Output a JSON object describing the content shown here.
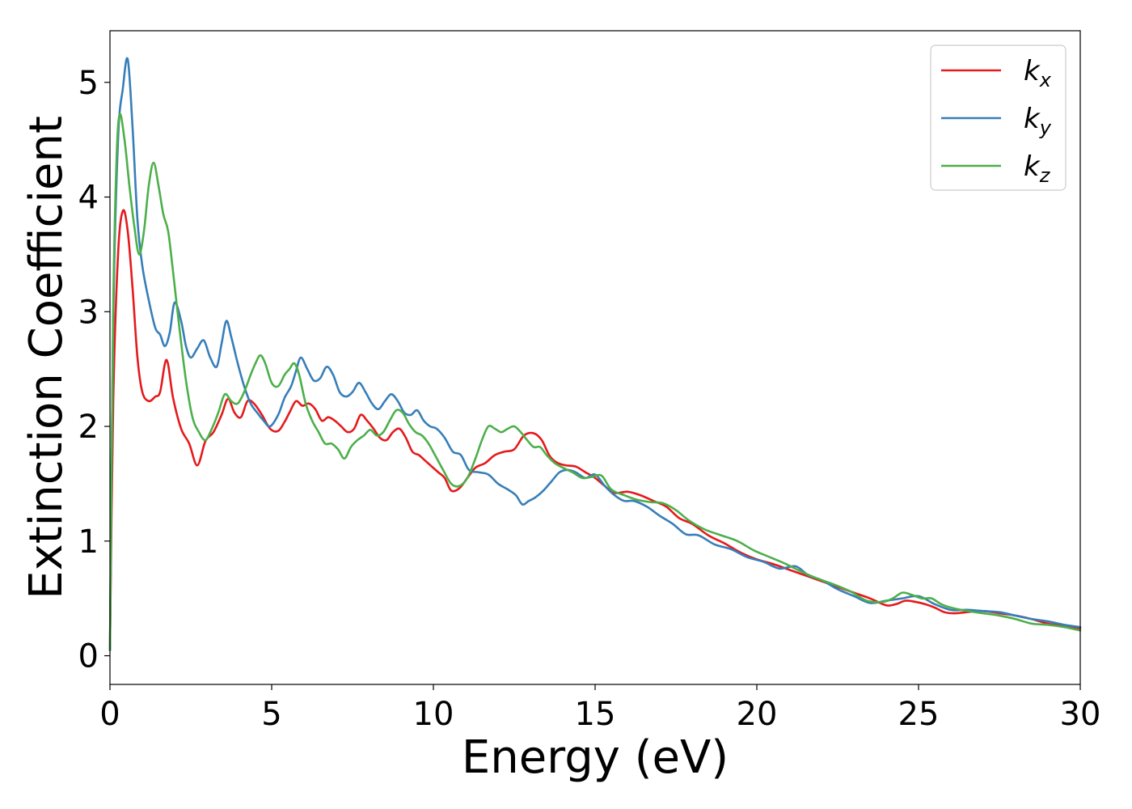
{
  "chart_data": {
    "type": "line",
    "xlabel": "Energy (eV)",
    "ylabel": "Extinction Coefficient",
    "xlim": [
      0,
      30
    ],
    "ylim": [
      -0.25,
      5.45
    ],
    "xticks": [
      0,
      5,
      10,
      15,
      20,
      25,
      30
    ],
    "yticks": [
      0,
      1,
      2,
      3,
      4,
      5
    ],
    "grid": false,
    "legend_position": "top-right",
    "series": [
      {
        "name": "kx",
        "label_main": "k",
        "label_sub": "x",
        "color": "#e41a1c",
        "x": [
          0,
          0.1,
          0.25,
          0.4,
          0.55,
          0.7,
          0.85,
          1.0,
          1.2,
          1.4,
          1.55,
          1.75,
          1.95,
          2.2,
          2.45,
          2.7,
          2.95,
          3.2,
          3.45,
          3.65,
          3.85,
          4.05,
          4.25,
          4.45,
          4.7,
          4.95,
          5.2,
          5.4,
          5.55,
          5.75,
          5.95,
          6.15,
          6.35,
          6.55,
          6.75,
          6.95,
          7.15,
          7.35,
          7.55,
          7.75,
          7.95,
          8.15,
          8.35,
          8.55,
          8.75,
          8.95,
          9.15,
          9.35,
          9.55,
          9.75,
          9.95,
          10.15,
          10.35,
          10.55,
          10.8,
          11.05,
          11.3,
          11.6,
          11.9,
          12.2,
          12.5,
          12.8,
          13.1,
          13.35,
          13.6,
          13.85,
          14.1,
          14.4,
          14.7,
          15.0,
          15.3,
          15.6,
          16.0,
          16.4,
          16.8,
          17.2,
          17.6,
          18.0,
          18.5,
          19.0,
          19.5,
          20.0,
          20.5,
          21.0,
          21.5,
          22.0,
          22.5,
          23.0,
          23.5,
          24.0,
          24.3,
          24.6,
          24.9,
          25.2,
          25.5,
          25.8,
          26.1,
          26.5,
          27.0,
          27.5,
          28.0,
          28.5,
          29.0,
          29.5,
          30.0
        ],
        "y": [
          0.05,
          2.2,
          3.5,
          3.88,
          3.7,
          3.2,
          2.6,
          2.3,
          2.22,
          2.26,
          2.3,
          2.58,
          2.25,
          1.98,
          1.85,
          1.66,
          1.87,
          1.95,
          2.1,
          2.24,
          2.12,
          2.08,
          2.22,
          2.2,
          2.1,
          1.98,
          1.96,
          2.04,
          2.12,
          2.22,
          2.18,
          2.2,
          2.15,
          2.05,
          2.08,
          2.05,
          2.0,
          1.95,
          1.98,
          2.1,
          2.05,
          1.98,
          1.9,
          1.88,
          1.95,
          1.98,
          1.9,
          1.78,
          1.75,
          1.7,
          1.65,
          1.6,
          1.55,
          1.44,
          1.46,
          1.55,
          1.64,
          1.68,
          1.75,
          1.78,
          1.8,
          1.92,
          1.94,
          1.88,
          1.74,
          1.68,
          1.66,
          1.65,
          1.6,
          1.55,
          1.48,
          1.42,
          1.43,
          1.4,
          1.35,
          1.3,
          1.2,
          1.15,
          1.05,
          0.98,
          0.9,
          0.84,
          0.8,
          0.75,
          0.7,
          0.65,
          0.6,
          0.55,
          0.5,
          0.44,
          0.45,
          0.48,
          0.47,
          0.45,
          0.42,
          0.38,
          0.37,
          0.38,
          0.39,
          0.37,
          0.35,
          0.32,
          0.28,
          0.26,
          0.24
        ]
      },
      {
        "name": "ky",
        "label_main": "k",
        "label_sub": "y",
        "color": "#377eb8",
        "x": [
          0,
          0.1,
          0.25,
          0.4,
          0.55,
          0.7,
          0.85,
          1.0,
          1.2,
          1.4,
          1.55,
          1.7,
          1.85,
          2.0,
          2.2,
          2.35,
          2.5,
          2.7,
          2.9,
          3.1,
          3.3,
          3.45,
          3.6,
          3.75,
          3.95,
          4.15,
          4.35,
          4.55,
          4.75,
          4.95,
          5.2,
          5.4,
          5.6,
          5.75,
          5.9,
          6.1,
          6.3,
          6.5,
          6.7,
          6.9,
          7.1,
          7.3,
          7.5,
          7.7,
          7.9,
          8.1,
          8.3,
          8.5,
          8.7,
          8.9,
          9.1,
          9.3,
          9.5,
          9.7,
          9.9,
          10.1,
          10.35,
          10.6,
          10.85,
          11.1,
          11.4,
          11.7,
          12.0,
          12.3,
          12.55,
          12.75,
          12.95,
          13.15,
          13.4,
          13.65,
          13.9,
          14.15,
          14.4,
          14.7,
          15.0,
          15.3,
          15.6,
          15.9,
          16.2,
          16.6,
          17.0,
          17.4,
          17.8,
          18.2,
          18.7,
          19.2,
          19.7,
          20.2,
          20.7,
          21.2,
          21.6,
          22.0,
          22.5,
          23.0,
          23.5,
          24.0,
          24.5,
          25.0,
          25.5,
          26.0,
          26.5,
          27.0,
          27.5,
          28.0,
          28.5,
          29.0,
          29.5,
          30.0
        ],
        "y": [
          0.05,
          2.9,
          4.5,
          4.95,
          5.2,
          4.6,
          3.8,
          3.4,
          3.1,
          2.86,
          2.8,
          2.7,
          2.82,
          3.08,
          2.92,
          2.7,
          2.6,
          2.68,
          2.75,
          2.6,
          2.52,
          2.72,
          2.92,
          2.78,
          2.55,
          2.35,
          2.2,
          2.12,
          2.05,
          2.0,
          2.1,
          2.25,
          2.35,
          2.48,
          2.6,
          2.5,
          2.4,
          2.42,
          2.52,
          2.45,
          2.3,
          2.26,
          2.3,
          2.38,
          2.3,
          2.2,
          2.15,
          2.22,
          2.28,
          2.22,
          2.12,
          2.1,
          2.14,
          2.05,
          2.0,
          1.98,
          1.9,
          1.78,
          1.75,
          1.62,
          1.6,
          1.58,
          1.5,
          1.45,
          1.4,
          1.32,
          1.35,
          1.38,
          1.44,
          1.52,
          1.6,
          1.62,
          1.6,
          1.55,
          1.58,
          1.48,
          1.4,
          1.35,
          1.35,
          1.3,
          1.22,
          1.15,
          1.06,
          1.05,
          0.97,
          0.93,
          0.86,
          0.82,
          0.76,
          0.78,
          0.7,
          0.66,
          0.58,
          0.52,
          0.46,
          0.48,
          0.5,
          0.52,
          0.45,
          0.4,
          0.4,
          0.39,
          0.38,
          0.35,
          0.32,
          0.3,
          0.27,
          0.25
        ]
      },
      {
        "name": "kz",
        "label_main": "k",
        "label_sub": "z",
        "color": "#4daf4a",
        "x": [
          0,
          0.1,
          0.2,
          0.3,
          0.45,
          0.6,
          0.75,
          0.9,
          1.05,
          1.2,
          1.35,
          1.5,
          1.65,
          1.8,
          1.95,
          2.15,
          2.35,
          2.55,
          2.75,
          2.95,
          3.15,
          3.35,
          3.55,
          3.75,
          3.95,
          4.15,
          4.35,
          4.5,
          4.65,
          4.8,
          5.0,
          5.2,
          5.4,
          5.55,
          5.7,
          5.85,
          6.05,
          6.25,
          6.45,
          6.65,
          6.85,
          7.05,
          7.25,
          7.45,
          7.65,
          7.85,
          8.05,
          8.25,
          8.45,
          8.65,
          8.85,
          9.05,
          9.25,
          9.45,
          9.65,
          9.85,
          10.05,
          10.3,
          10.55,
          10.8,
          11.05,
          11.3,
          11.5,
          11.7,
          11.9,
          12.1,
          12.3,
          12.5,
          12.7,
          12.9,
          13.1,
          13.3,
          13.5,
          13.75,
          14.0,
          14.3,
          14.6,
          14.9,
          15.2,
          15.5,
          15.9,
          16.3,
          16.7,
          17.1,
          17.5,
          17.9,
          18.4,
          18.9,
          19.4,
          19.9,
          20.4,
          20.9,
          21.4,
          21.9,
          22.4,
          22.9,
          23.4,
          23.9,
          24.2,
          24.5,
          24.8,
          25.1,
          25.4,
          25.7,
          26.0,
          26.5,
          27.0,
          27.5,
          28.0,
          28.5,
          29.0,
          29.5,
          30.0
        ],
        "y": [
          0.05,
          3.0,
          4.3,
          4.72,
          4.5,
          4.1,
          3.75,
          3.5,
          3.7,
          4.1,
          4.3,
          4.1,
          3.85,
          3.7,
          3.35,
          2.85,
          2.4,
          2.08,
          1.95,
          1.88,
          1.98,
          2.12,
          2.28,
          2.22,
          2.2,
          2.3,
          2.45,
          2.55,
          2.62,
          2.55,
          2.38,
          2.35,
          2.45,
          2.5,
          2.55,
          2.45,
          2.2,
          2.05,
          1.95,
          1.85,
          1.85,
          1.8,
          1.72,
          1.82,
          1.88,
          1.92,
          1.97,
          1.92,
          1.95,
          2.05,
          2.14,
          2.12,
          2.02,
          1.95,
          1.92,
          1.85,
          1.75,
          1.62,
          1.5,
          1.48,
          1.55,
          1.72,
          1.88,
          2.0,
          1.98,
          1.95,
          1.98,
          2.0,
          1.95,
          1.88,
          1.82,
          1.82,
          1.75,
          1.68,
          1.64,
          1.6,
          1.55,
          1.56,
          1.57,
          1.45,
          1.4,
          1.36,
          1.34,
          1.33,
          1.27,
          1.18,
          1.1,
          1.05,
          1.0,
          0.92,
          0.86,
          0.8,
          0.73,
          0.67,
          0.62,
          0.56,
          0.48,
          0.47,
          0.5,
          0.55,
          0.53,
          0.5,
          0.5,
          0.45,
          0.42,
          0.39,
          0.37,
          0.35,
          0.32,
          0.28,
          0.27,
          0.25,
          0.22
        ]
      }
    ]
  }
}
